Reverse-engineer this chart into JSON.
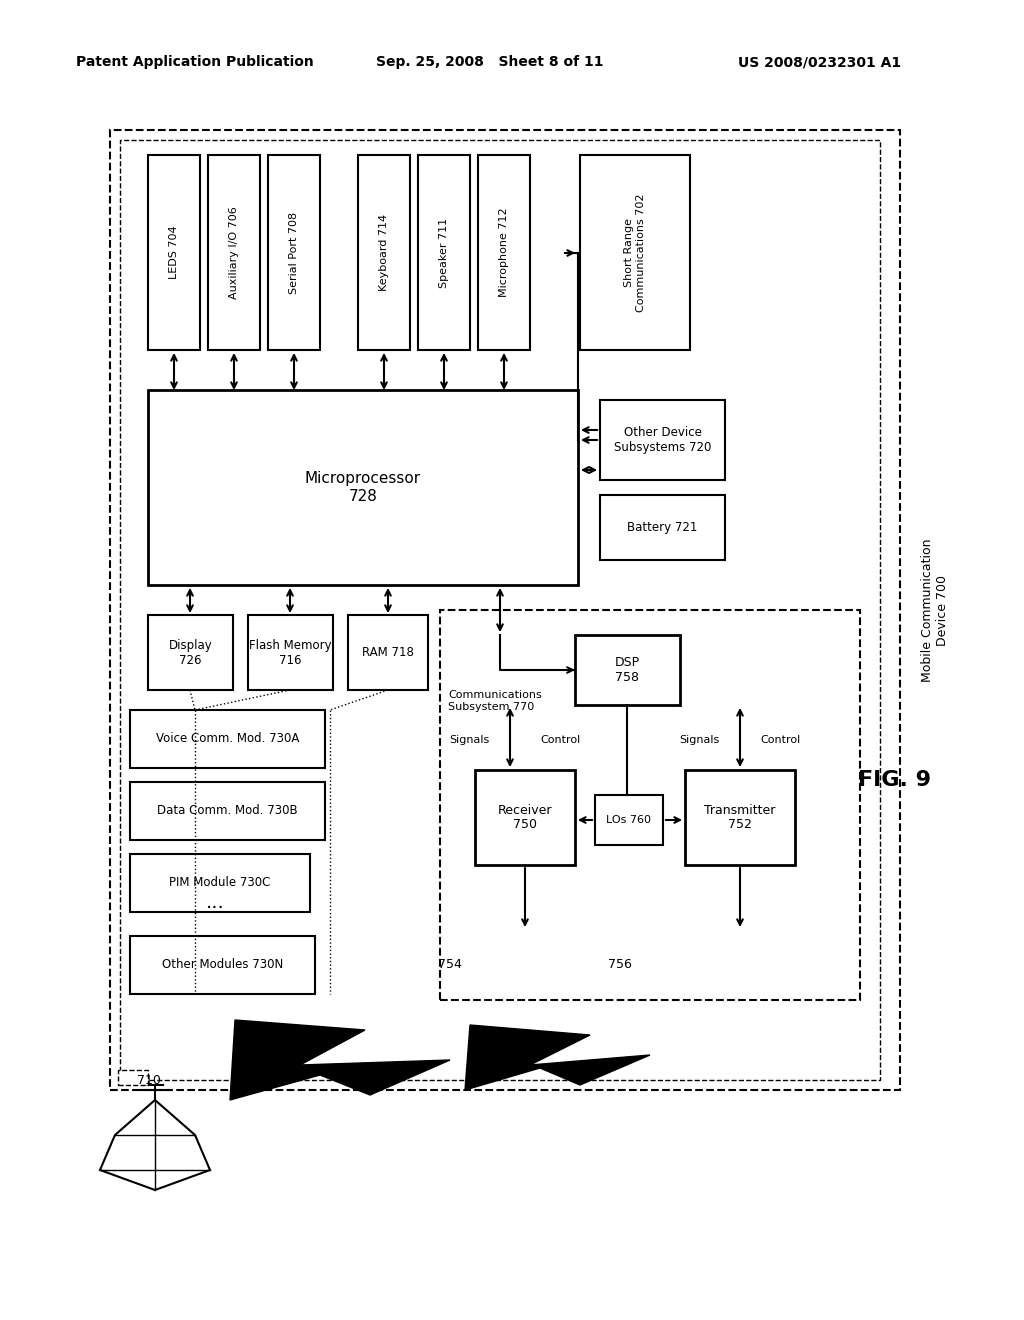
{
  "bg_color": "#ffffff",
  "header_left": "Patent Application Publication",
  "header_center": "Sep. 25, 2008   Sheet 8 of 11",
  "header_right": "US 2008/0232301 A1",
  "fig_label": "FIG. 9"
}
